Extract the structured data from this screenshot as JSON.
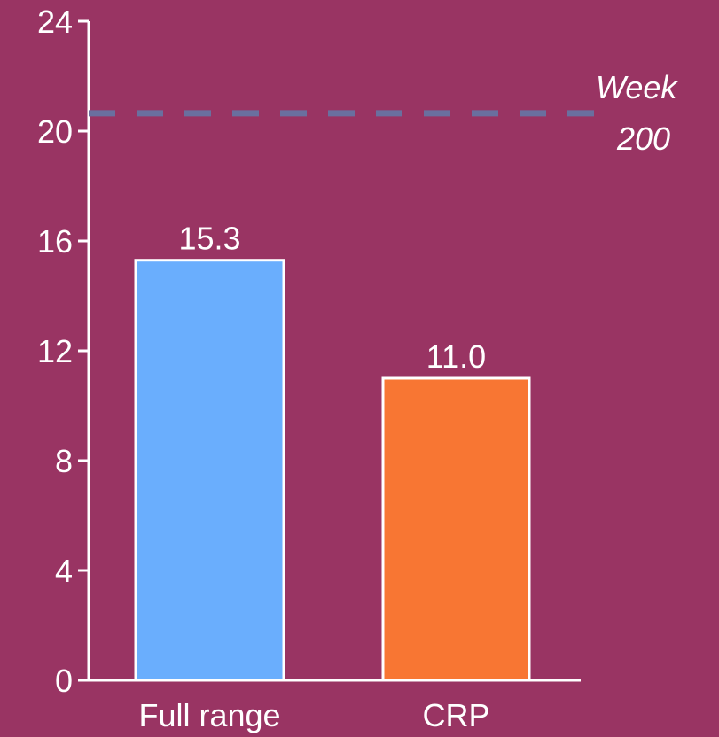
{
  "chart_data": {
    "type": "bar",
    "categories": [
      "Full range",
      "CRP"
    ],
    "values": [
      15.3,
      11.0
    ],
    "value_labels": [
      "15.3",
      "11.0"
    ],
    "colors": [
      "#6aaefd",
      "#f87633"
    ],
    "ylim": [
      0,
      24
    ],
    "yticks": [
      0,
      4,
      8,
      12,
      16,
      20,
      24
    ],
    "reference_line": {
      "value": 20.65,
      "color": "#6a6f9f",
      "label": [
        "Week",
        "200"
      ]
    }
  }
}
